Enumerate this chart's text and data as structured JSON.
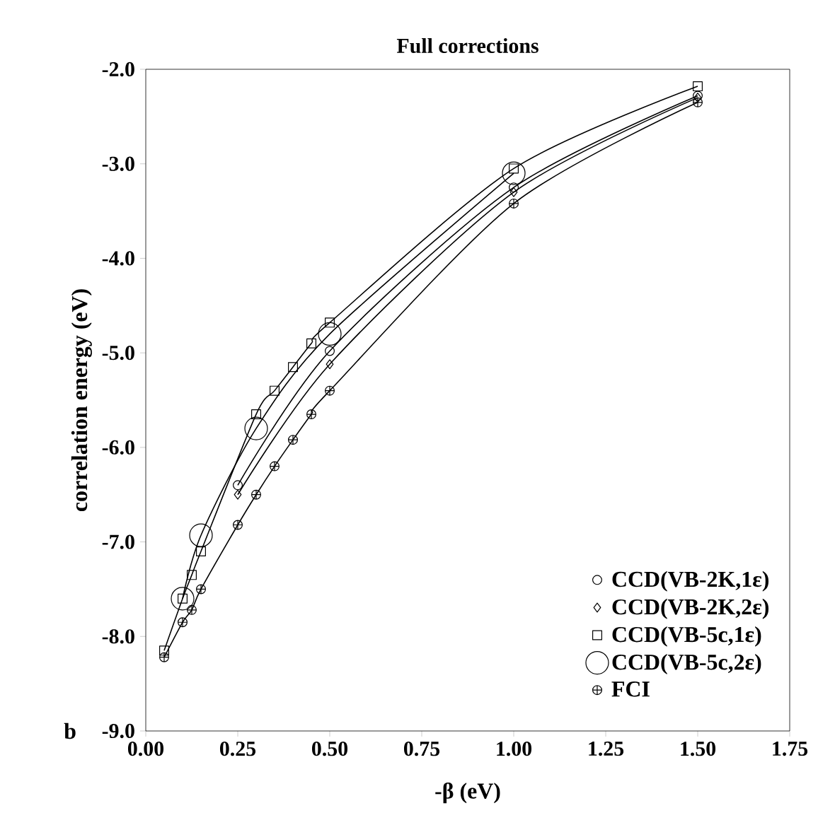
{
  "chart_data": {
    "type": "line",
    "title": "Full corrections",
    "xlabel": "-β (eV)",
    "ylabel": "correlation energy (eV)",
    "xlim": [
      0,
      1.75
    ],
    "ylim": [
      -9,
      -2
    ],
    "xticks": [
      {
        "value": 0,
        "label": "0.00"
      },
      {
        "value": 0.25,
        "label": "0.25"
      },
      {
        "value": 0.5,
        "label": "0.50"
      },
      {
        "value": 0.75,
        "label": "0.75"
      },
      {
        "value": 1,
        "label": "1.00"
      },
      {
        "value": 1.25,
        "label": "1.25"
      },
      {
        "value": 1.5,
        "label": "1.50"
      },
      {
        "value": 1.75,
        "label": "1.75"
      }
    ],
    "yticks": [
      {
        "value": -9,
        "label": "-9.0"
      },
      {
        "value": -8,
        "label": "-8.0"
      },
      {
        "value": -7,
        "label": "-7.0"
      },
      {
        "value": -6,
        "label": "-6.0"
      },
      {
        "value": -5,
        "label": "-5.0"
      },
      {
        "value": -4,
        "label": "-4.0"
      },
      {
        "value": -3,
        "label": "-3.0"
      },
      {
        "value": -2,
        "label": "-2.0"
      }
    ],
    "legend": "bottom right",
    "grid": false,
    "line_style": "solid",
    "annotations": [
      "b"
    ],
    "series": [
      {
        "name": "CCD(VB-2K,1ε)",
        "color": "#000000",
        "marker": "circle",
        "x": [
          0.25,
          0.5,
          1.0,
          1.5
        ],
        "values": [
          -6.4,
          -4.98,
          -3.25,
          -2.28
        ]
      },
      {
        "name": "CCD(VB-2K,2ε)",
        "color": "#000000",
        "marker": "diamond",
        "x": [
          0.25,
          0.5,
          1.0,
          1.5
        ],
        "values": [
          -6.5,
          -5.12,
          -3.3,
          -2.3
        ]
      },
      {
        "name": "CCD(VB-5c,1ε)",
        "color": "#000000",
        "marker": "square",
        "x": [
          0.05,
          0.1,
          0.125,
          0.15,
          0.3,
          0.35,
          0.4,
          0.45,
          0.5,
          1.0,
          1.5
        ],
        "values": [
          -8.15,
          -7.6,
          -7.35,
          -7.1,
          -5.65,
          -5.4,
          -5.15,
          -4.9,
          -4.68,
          -3.05,
          -2.18
        ]
      },
      {
        "name": "CCD(VB-5c,2ε)",
        "color": "#000000",
        "marker": "circle",
        "x": [
          0.1,
          0.15,
          0.3,
          0.5,
          1.0
        ],
        "values": [
          -7.6,
          -6.93,
          -5.8,
          -4.8,
          -3.1
        ]
      },
      {
        "name": "FCI",
        "color": "#000000",
        "marker": "cross",
        "x": [
          0.05,
          0.1,
          0.125,
          0.15,
          0.25,
          0.3,
          0.35,
          0.4,
          0.45,
          0.5,
          1.0,
          1.5
        ],
        "values": [
          -8.22,
          -7.85,
          -7.72,
          -7.5,
          -6.82,
          -6.5,
          -6.2,
          -5.92,
          -5.65,
          -5.4,
          -3.42,
          -2.35
        ]
      }
    ]
  }
}
